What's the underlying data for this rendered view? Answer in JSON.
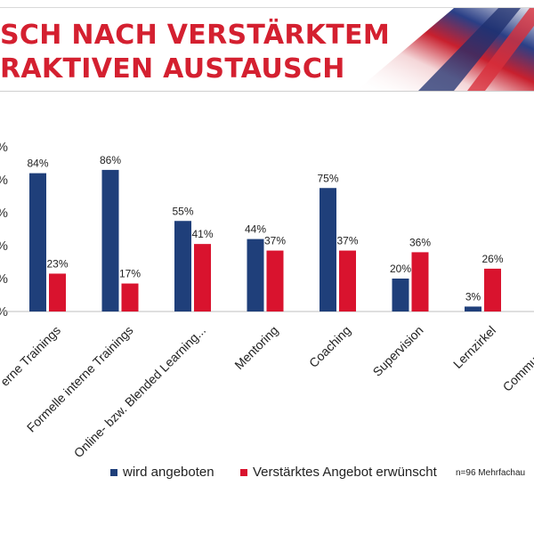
{
  "header": {
    "title_line1": "SCH NACH VERSTÄRKTEM",
    "title_line2": "RAKTIVEN AUSTAUSCH"
  },
  "colors": {
    "offered": "#1f3f7a",
    "desired": "#d9132e",
    "title": "#d42030"
  },
  "chart_data": {
    "type": "bar",
    "ylim": [
      0,
      100
    ],
    "y_tick_labels": [
      "%",
      "%",
      "%",
      "%",
      "%",
      "%"
    ],
    "categories": [
      "erne Trainings",
      "Formelle interne Trainings",
      "Online- bzw. Blended Learning...",
      "Mentoring",
      "Coaching",
      "Supervision",
      "Lernzirkel",
      "Communities of"
    ],
    "series": [
      {
        "name": "wird angeboten",
        "values": [
          84,
          86,
          55,
          44,
          75,
          20,
          3,
          null
        ],
        "labels": [
          "84%",
          "86%",
          "55%",
          "44%",
          "75%",
          "20%",
          "3%",
          ""
        ]
      },
      {
        "name": "Verstärktes Angebot erwünscht",
        "values": [
          23,
          17,
          41,
          37,
          37,
          36,
          26,
          null
        ],
        "labels": [
          "23%",
          "17%",
          "41%",
          "37%",
          "37%",
          "36%",
          "26%",
          ""
        ]
      }
    ],
    "legend_position": "bottom",
    "grid": false
  },
  "note": "n=96 Mehrfachau"
}
